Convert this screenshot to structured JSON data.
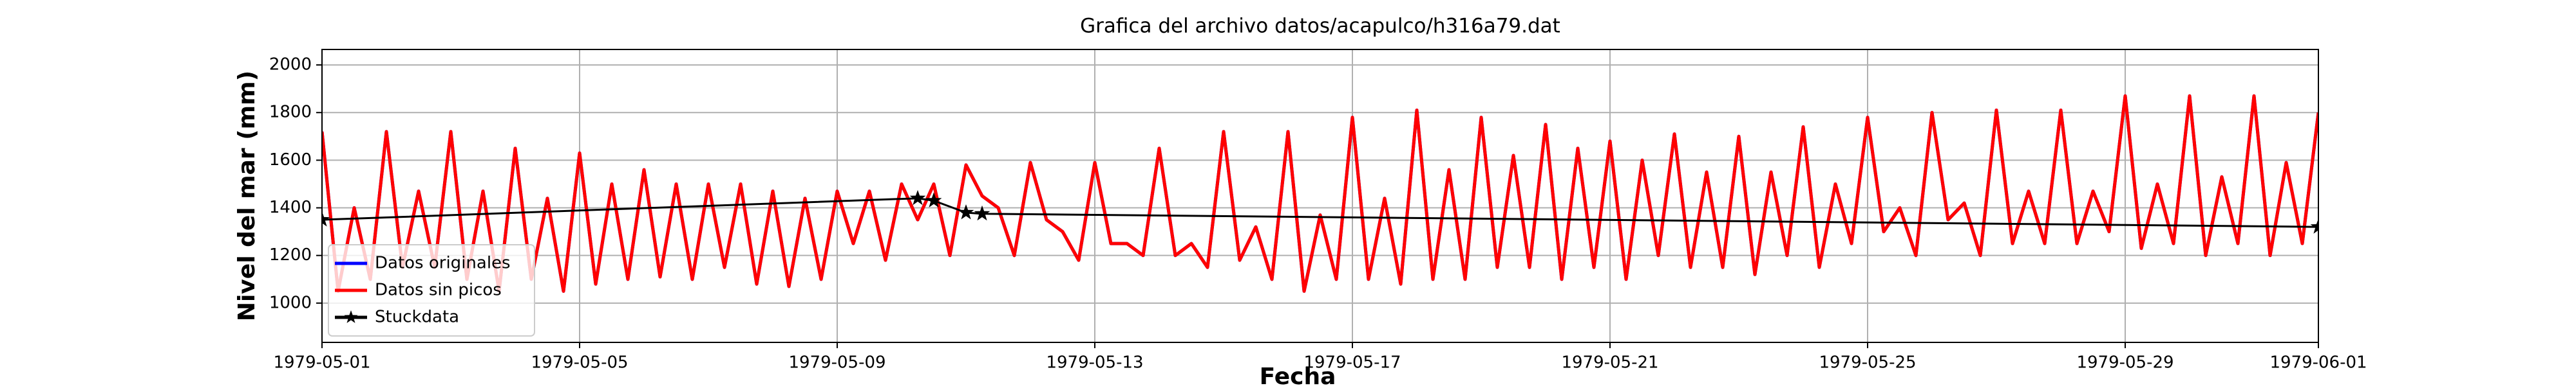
{
  "chart_data": {
    "type": "line",
    "title": "Grafica del archivo datos/acapulco/h316a79.dat",
    "x_label": "Fecha",
    "y_label": "Nivel del mar (mm)",
    "xlim": [
      "1979-05-01",
      "1979-06-01"
    ],
    "xticks": [
      "1979-05-01",
      "1979-05-05",
      "1979-05-09",
      "1979-05-13",
      "1979-05-17",
      "1979-05-21",
      "1979-05-25",
      "1979-05-29",
      "1979-06-01"
    ],
    "ylim": [
      835,
      2065
    ],
    "yticks": [
      1000,
      1200,
      1400,
      1600,
      1800,
      2000
    ],
    "grid": true,
    "legend": "lower left",
    "x": [
      "1979-05-01T00:00",
      "1979-05-01T06:00",
      "1979-05-01T12:00",
      "1979-05-01T18:00",
      "1979-05-02T00:00",
      "1979-05-02T06:00",
      "1979-05-02T12:00",
      "1979-05-02T18:00",
      "1979-05-03T00:00",
      "1979-05-03T06:00",
      "1979-05-03T12:00",
      "1979-05-03T18:00",
      "1979-05-04T00:00",
      "1979-05-04T06:00",
      "1979-05-04T12:00",
      "1979-05-04T18:00",
      "1979-05-05T00:00",
      "1979-05-05T06:00",
      "1979-05-05T12:00",
      "1979-05-05T18:00",
      "1979-05-06T00:00",
      "1979-05-06T06:00",
      "1979-05-06T12:00",
      "1979-05-06T18:00",
      "1979-05-07T00:00",
      "1979-05-07T06:00",
      "1979-05-07T12:00",
      "1979-05-07T18:00",
      "1979-05-08T00:00",
      "1979-05-08T06:00",
      "1979-05-08T12:00",
      "1979-05-08T18:00",
      "1979-05-09T00:00",
      "1979-05-09T06:00",
      "1979-05-09T12:00",
      "1979-05-09T18:00",
      "1979-05-10T00:00",
      "1979-05-10T06:00",
      "1979-05-10T12:00",
      "1979-05-10T18:00",
      "1979-05-11T00:00",
      "1979-05-11T06:00",
      "1979-05-11T12:00",
      "1979-05-11T18:00",
      "1979-05-12T00:00",
      "1979-05-12T06:00",
      "1979-05-12T12:00",
      "1979-05-12T18:00",
      "1979-05-13T00:00",
      "1979-05-13T06:00",
      "1979-05-13T12:00",
      "1979-05-13T18:00",
      "1979-05-14T00:00",
      "1979-05-14T06:00",
      "1979-05-14T12:00",
      "1979-05-14T18:00",
      "1979-05-15T00:00",
      "1979-05-15T06:00",
      "1979-05-15T12:00",
      "1979-05-15T18:00",
      "1979-05-16T00:00",
      "1979-05-16T06:00",
      "1979-05-16T12:00",
      "1979-05-16T18:00",
      "1979-05-17T00:00",
      "1979-05-17T06:00",
      "1979-05-17T12:00",
      "1979-05-17T18:00",
      "1979-05-18T00:00",
      "1979-05-18T06:00",
      "1979-05-18T12:00",
      "1979-05-18T18:00",
      "1979-05-19T00:00",
      "1979-05-19T06:00",
      "1979-05-19T12:00",
      "1979-05-19T18:00",
      "1979-05-20T00:00",
      "1979-05-20T06:00",
      "1979-05-20T12:00",
      "1979-05-20T18:00",
      "1979-05-21T00:00",
      "1979-05-21T06:00",
      "1979-05-21T12:00",
      "1979-05-21T18:00",
      "1979-05-22T00:00",
      "1979-05-22T06:00",
      "1979-05-22T12:00",
      "1979-05-22T18:00",
      "1979-05-23T00:00",
      "1979-05-23T06:00",
      "1979-05-23T12:00",
      "1979-05-23T18:00",
      "1979-05-24T00:00",
      "1979-05-24T06:00",
      "1979-05-24T12:00",
      "1979-05-24T18:00",
      "1979-05-25T00:00",
      "1979-05-25T06:00",
      "1979-05-25T12:00",
      "1979-05-25T18:00",
      "1979-05-26T00:00",
      "1979-05-26T06:00",
      "1979-05-26T12:00",
      "1979-05-26T18:00",
      "1979-05-27T00:00",
      "1979-05-27T06:00",
      "1979-05-27T12:00",
      "1979-05-27T18:00",
      "1979-05-28T00:00",
      "1979-05-28T06:00",
      "1979-05-28T12:00",
      "1979-05-28T18:00",
      "1979-05-29T00:00",
      "1979-05-29T06:00",
      "1979-05-29T12:00",
      "1979-05-29T18:00",
      "1979-05-30T00:00",
      "1979-05-30T06:00",
      "1979-05-30T12:00",
      "1979-05-30T18:00",
      "1979-05-31T00:00",
      "1979-05-31T06:00",
      "1979-05-31T12:00",
      "1979-05-31T18:00",
      "1979-06-01T00:00"
    ],
    "series": [
      {
        "name": "Datos originales",
        "color": "#0000ff",
        "values": [
          1720,
          1050,
          1400,
          1100,
          1720,
          1150,
          1470,
          1150,
          1720,
          1100,
          1470,
          1050,
          1650,
          1100,
          1440,
          1050,
          1630,
          1080,
          1500,
          1100,
          1560,
          1110,
          1500,
          1100,
          1500,
          1150,
          1500,
          1080,
          1470,
          1070,
          1440,
          1100,
          1470,
          1250,
          1470,
          1180,
          1500,
          1350,
          1500,
          1200,
          1580,
          1450,
          1400,
          1200,
          1590,
          1350,
          1300,
          1180,
          1590,
          1250,
          1250,
          1200,
          1650,
          1200,
          1250,
          1150,
          1720,
          1180,
          1320,
          1100,
          1720,
          1050,
          1370,
          1100,
          1780,
          1100,
          1440,
          1080,
          1810,
          1100,
          1560,
          1100,
          1780,
          1150,
          1620,
          1150,
          1750,
          1100,
          1650,
          1150,
          1680,
          1100,
          1600,
          1200,
          1710,
          1150,
          1550,
          1150,
          1700,
          1120,
          1550,
          1200,
          1740,
          1150,
          1500,
          1250,
          1780,
          1300,
          1400,
          1200,
          1800,
          1350,
          1420,
          1200,
          1810,
          1250,
          1470,
          1250,
          1810,
          1250,
          1470,
          1300,
          1870,
          1230,
          1500,
          1250,
          1870,
          1200,
          1530,
          1250,
          1870,
          1200,
          1590,
          1250,
          1800
        ]
      },
      {
        "name": "Datos sin picos",
        "color": "#ff0000",
        "values": [
          1720,
          1050,
          1400,
          1100,
          1720,
          1150,
          1470,
          1150,
          1720,
          1100,
          1470,
          1050,
          1650,
          1100,
          1440,
          1050,
          1630,
          1080,
          1500,
          1100,
          1560,
          1110,
          1500,
          1100,
          1500,
          1150,
          1500,
          1080,
          1470,
          1070,
          1440,
          1100,
          1470,
          1250,
          1470,
          1180,
          1500,
          1350,
          1500,
          1200,
          1580,
          1450,
          1400,
          1200,
          1590,
          1350,
          1300,
          1180,
          1590,
          1250,
          1250,
          1200,
          1650,
          1200,
          1250,
          1150,
          1720,
          1180,
          1320,
          1100,
          1720,
          1050,
          1370,
          1100,
          1780,
          1100,
          1440,
          1080,
          1810,
          1100,
          1560,
          1100,
          1780,
          1150,
          1620,
          1150,
          1750,
          1100,
          1650,
          1150,
          1680,
          1100,
          1600,
          1200,
          1710,
          1150,
          1550,
          1150,
          1700,
          1120,
          1550,
          1200,
          1740,
          1150,
          1500,
          1250,
          1780,
          1300,
          1400,
          1200,
          1800,
          1350,
          1420,
          1200,
          1810,
          1250,
          1470,
          1250,
          1810,
          1250,
          1470,
          1300,
          1870,
          1230,
          1500,
          1250,
          1870,
          1200,
          1530,
          1250,
          1870,
          1200,
          1590,
          1250,
          1800
        ]
      },
      {
        "name": "Stuckdata",
        "color": "#000000",
        "marker": "star",
        "x": [
          "1979-05-01T00:00",
          "1979-05-10T06:00",
          "1979-05-10T12:00",
          "1979-05-11T00:00",
          "1979-05-11T06:00",
          "1979-06-01T00:00"
        ],
        "values": [
          1350,
          1440,
          1430,
          1380,
          1375,
          1320
        ]
      }
    ]
  }
}
